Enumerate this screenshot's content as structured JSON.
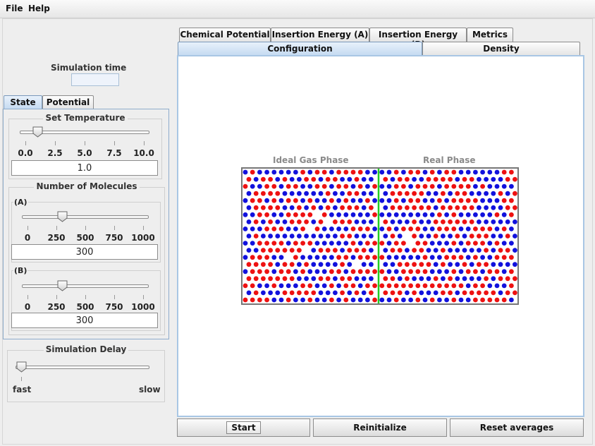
{
  "menu": {
    "file": "File",
    "help": "Help"
  },
  "sim_time": {
    "label": "Simulation time",
    "value": ""
  },
  "left_tabs": {
    "state": "State",
    "potential": "Potential",
    "active": "State"
  },
  "temperature": {
    "title": "Set Temperature",
    "ticks": [
      "0.0",
      "2.5",
      "5.0",
      "7.5",
      "10.0"
    ],
    "min": 0,
    "max": 10,
    "value_num": 1.0,
    "value": "1.0"
  },
  "molecules": {
    "title": "Number of Molecules",
    "a": {
      "label": "(A)",
      "ticks": [
        "0",
        "250",
        "500",
        "750",
        "1000"
      ],
      "min": 0,
      "max": 1000,
      "value_num": 300,
      "value": "300"
    },
    "b": {
      "label": "(B)",
      "ticks": [
        "0",
        "250",
        "500",
        "750",
        "1000"
      ],
      "min": 0,
      "max": 1000,
      "value_num": 300,
      "value": "300"
    }
  },
  "delay": {
    "title": "Simulation Delay",
    "fast": "fast",
    "slow": "slow",
    "value_frac": 0
  },
  "tabs_top": [
    "Chemical Potential",
    "Insertion Energy (A)",
    "Insertion Energy (B)",
    "Metrics"
  ],
  "tabs_bottom": [
    "Configuration",
    "Density"
  ],
  "active_tab": "Configuration",
  "phases": {
    "left": "Ideal Gas Phase",
    "right": "Real Phase"
  },
  "buttons": {
    "start": "Start",
    "reinit": "Reinitialize",
    "reset": "Reset averages"
  },
  "colors": {
    "species_a": "#ee1111",
    "species_b": "#1111dd",
    "divider": "#22cc22",
    "accent": "#c4daf1"
  }
}
